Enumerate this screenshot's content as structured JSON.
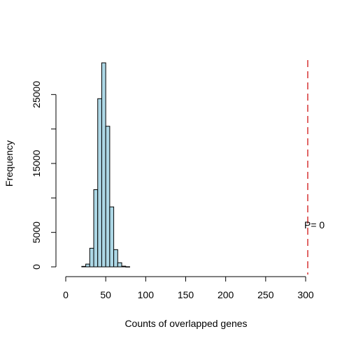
{
  "chart_data": {
    "type": "bar",
    "title": "",
    "xlabel": "Counts of overlapped genes",
    "ylabel": "Frequency",
    "xlim": [
      0,
      300
    ],
    "ylim": [
      0,
      30000
    ],
    "x_ticks": [
      "0",
      "50",
      "100",
      "150",
      "200",
      "250",
      "300"
    ],
    "y_ticks": [
      "0",
      "5000",
      "15000",
      "25000"
    ],
    "bin_width": 5,
    "bins": [
      {
        "start": 20,
        "end": 25,
        "value": 70
      },
      {
        "start": 25,
        "end": 30,
        "value": 400
      },
      {
        "start": 30,
        "end": 35,
        "value": 2700
      },
      {
        "start": 35,
        "end": 40,
        "value": 11200
      },
      {
        "start": 40,
        "end": 45,
        "value": 24400
      },
      {
        "start": 45,
        "end": 50,
        "value": 29600
      },
      {
        "start": 50,
        "end": 55,
        "value": 20400
      },
      {
        "start": 55,
        "end": 60,
        "value": 8700
      },
      {
        "start": 60,
        "end": 65,
        "value": 2500
      },
      {
        "start": 65,
        "end": 70,
        "value": 600
      },
      {
        "start": 70,
        "end": 75,
        "value": 100
      },
      {
        "start": 75,
        "end": 80,
        "value": 20
      }
    ],
    "observed_value": 300,
    "observed_line": {
      "color": "#cc0000",
      "style": "dashed"
    },
    "annotation": "P= 0",
    "bar_fill": "#add8e6",
    "bar_stroke": "#000000",
    "grid": false,
    "legend": "none"
  }
}
